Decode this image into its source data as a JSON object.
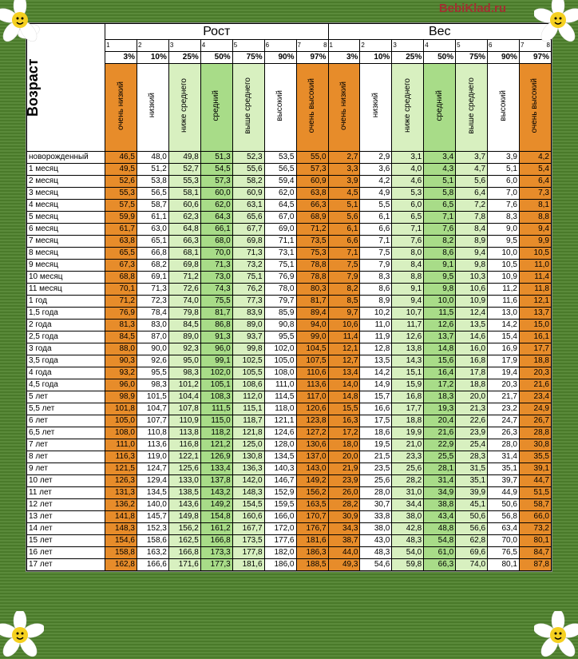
{
  "watermark": "BebiKlad.ru",
  "age_header": "Возраст",
  "sections": [
    "Рост",
    "Вес"
  ],
  "col_indices": [
    "1",
    "2",
    "3",
    "4",
    "5",
    "6",
    "7",
    "8"
  ],
  "percentiles": [
    "3%",
    "10%",
    "25%",
    "50%",
    "75%",
    "90%",
    "97%"
  ],
  "descriptors": [
    "очень низкий",
    "низкий",
    "ниже среднего",
    "средний",
    "выше среднего",
    "высокий",
    "очень высокий"
  ],
  "color_classes": [
    "c0",
    "c1",
    "c2",
    "c3",
    "c4",
    "c5",
    "c6"
  ],
  "rows": [
    {
      "age": "новорожденный",
      "h": [
        "46,5",
        "48,0",
        "49,8",
        "51,3",
        "52,3",
        "53,5",
        "55,0"
      ],
      "w": [
        "2,7",
        "2,9",
        "3,1",
        "3,4",
        "3,7",
        "3,9",
        "4,2"
      ]
    },
    {
      "age": "1 месяц",
      "h": [
        "49,5",
        "51,2",
        "52,7",
        "54,5",
        "55,6",
        "56,5",
        "57,3"
      ],
      "w": [
        "3,3",
        "3,6",
        "4,0",
        "4,3",
        "4,7",
        "5,1",
        "5,4"
      ]
    },
    {
      "age": "2 месяц",
      "h": [
        "52,6",
        "53,8",
        "55,3",
        "57,3",
        "58,2",
        "59,4",
        "60,9"
      ],
      "w": [
        "3,9",
        "4,2",
        "4,6",
        "5,1",
        "5,6",
        "6,0",
        "6,4"
      ]
    },
    {
      "age": "3 месяц",
      "h": [
        "55,3",
        "56,5",
        "58,1",
        "60,0",
        "60,9",
        "62,0",
        "63,8"
      ],
      "w": [
        "4,5",
        "4,9",
        "5,3",
        "5,8",
        "6,4",
        "7,0",
        "7,3"
      ]
    },
    {
      "age": "4 месяц",
      "h": [
        "57,5",
        "58,7",
        "60,6",
        "62,0",
        "63,1",
        "64,5",
        "66,3"
      ],
      "w": [
        "5,1",
        "5,5",
        "6,0",
        "6,5",
        "7,2",
        "7,6",
        "8,1"
      ]
    },
    {
      "age": "5 месяц",
      "h": [
        "59,9",
        "61,1",
        "62,3",
        "64,3",
        "65,6",
        "67,0",
        "68,9"
      ],
      "w": [
        "5,6",
        "6,1",
        "6,5",
        "7,1",
        "7,8",
        "8,3",
        "8,8"
      ]
    },
    {
      "age": "6 месяц",
      "h": [
        "61,7",
        "63,0",
        "64,8",
        "66,1",
        "67,7",
        "69,0",
        "71,2"
      ],
      "w": [
        "6,1",
        "6,6",
        "7,1",
        "7,6",
        "8,4",
        "9,0",
        "9,4"
      ]
    },
    {
      "age": "7 месяц",
      "h": [
        "63,8",
        "65,1",
        "66,3",
        "68,0",
        "69,8",
        "71,1",
        "73,5"
      ],
      "w": [
        "6,6",
        "7,1",
        "7,6",
        "8,2",
        "8,9",
        "9,5",
        "9,9"
      ]
    },
    {
      "age": "8 месяц",
      "h": [
        "65,5",
        "66,8",
        "68,1",
        "70,0",
        "71,3",
        "73,1",
        "75,3"
      ],
      "w": [
        "7,1",
        "7,5",
        "8,0",
        "8,6",
        "9,4",
        "10,0",
        "10,5"
      ]
    },
    {
      "age": "9 месяц",
      "h": [
        "67,3",
        "68,2",
        "69,8",
        "71,3",
        "73,2",
        "75,1",
        "78,8"
      ],
      "w": [
        "7,5",
        "7,9",
        "8,4",
        "9,1",
        "9,8",
        "10,5",
        "11,0"
      ]
    },
    {
      "age": "10 месяц",
      "h": [
        "68,8",
        "69,1",
        "71,2",
        "73,0",
        "75,1",
        "76,9",
        "78,8"
      ],
      "w": [
        "7,9",
        "8,3",
        "8,8",
        "9,5",
        "10,3",
        "10,9",
        "11,4"
      ]
    },
    {
      "age": "11 месяц",
      "h": [
        "70,1",
        "71,3",
        "72,6",
        "74,3",
        "76,2",
        "78,0",
        "80,3"
      ],
      "w": [
        "8,2",
        "8,6",
        "9,1",
        "9,8",
        "10,6",
        "11,2",
        "11,8"
      ]
    },
    {
      "age": "1 год",
      "h": [
        "71,2",
        "72,3",
        "74,0",
        "75,5",
        "77,3",
        "79,7",
        "81,7"
      ],
      "w": [
        "8,5",
        "8,9",
        "9,4",
        "10,0",
        "10,9",
        "11,6",
        "12,1"
      ]
    },
    {
      "age": "1,5 года",
      "h": [
        "76,9",
        "78,4",
        "79,8",
        "81,7",
        "83,9",
        "85,9",
        "89,4"
      ],
      "w": [
        "9,7",
        "10,2",
        "10,7",
        "11,5",
        "12,4",
        "13,0",
        "13,7"
      ]
    },
    {
      "age": "2 года",
      "h": [
        "81,3",
        "83,0",
        "84,5",
        "86,8",
        "89,0",
        "90,8",
        "94,0"
      ],
      "w": [
        "10,6",
        "11,0",
        "11,7",
        "12,6",
        "13,5",
        "14,2",
        "15,0"
      ]
    },
    {
      "age": "2,5 года",
      "h": [
        "84,5",
        "87,0",
        "89,0",
        "91,3",
        "93,7",
        "95,5",
        "99,0"
      ],
      "w": [
        "11,4",
        "11,9",
        "12,6",
        "13,7",
        "14,6",
        "15,4",
        "16,1"
      ]
    },
    {
      "age": "3 года",
      "h": [
        "88,0",
        "90,0",
        "92,3",
        "96,0",
        "99,8",
        "102,0",
        "104,5"
      ],
      "w": [
        "12,1",
        "12,8",
        "13,8",
        "14,8",
        "16,0",
        "16,9",
        "17,7"
      ]
    },
    {
      "age": "3,5 года",
      "h": [
        "90,3",
        "92,6",
        "95,0",
        "99,1",
        "102,5",
        "105,0",
        "107,5"
      ],
      "w": [
        "12,7",
        "13,5",
        "14,3",
        "15,6",
        "16,8",
        "17,9",
        "18,8"
      ]
    },
    {
      "age": "4 года",
      "h": [
        "93,2",
        "95,5",
        "98,3",
        "102,0",
        "105,5",
        "108,0",
        "110,6"
      ],
      "w": [
        "13,4",
        "14,2",
        "15,1",
        "16,4",
        "17,8",
        "19,4",
        "20,3"
      ]
    },
    {
      "age": "4,5 года",
      "h": [
        "96,0",
        "98,3",
        "101,2",
        "105,1",
        "108,6",
        "111,0",
        "113,6"
      ],
      "w": [
        "14,0",
        "14,9",
        "15,9",
        "17,2",
        "18,8",
        "20,3",
        "21,6"
      ]
    },
    {
      "age": "5 лет",
      "h": [
        "98,9",
        "101,5",
        "104,4",
        "108,3",
        "112,0",
        "114,5",
        "117,0"
      ],
      "w": [
        "14,8",
        "15,7",
        "16,8",
        "18,3",
        "20,0",
        "21,7",
        "23,4"
      ]
    },
    {
      "age": "5,5 лет",
      "h": [
        "101,8",
        "104,7",
        "107,8",
        "111,5",
        "115,1",
        "118,0",
        "120,6"
      ],
      "w": [
        "15,5",
        "16,6",
        "17,7",
        "19,3",
        "21,3",
        "23,2",
        "24,9"
      ]
    },
    {
      "age": "6 лет",
      "h": [
        "105,0",
        "107,7",
        "110,9",
        "115,0",
        "118,7",
        "121,1",
        "123,8"
      ],
      "w": [
        "16,3",
        "17,5",
        "18,8",
        "20,4",
        "22,6",
        "24,7",
        "26,7"
      ]
    },
    {
      "age": "6,5 лет",
      "h": [
        "108,0",
        "110,8",
        "113,8",
        "118,2",
        "121,8",
        "124,6",
        "127,2"
      ],
      "w": [
        "17,2",
        "18,6",
        "19,9",
        "21,6",
        "23,9",
        "26,3",
        "28,8"
      ]
    },
    {
      "age": "7 лет",
      "h": [
        "111,0",
        "113,6",
        "116,8",
        "121,2",
        "125,0",
        "128,0",
        "130,6"
      ],
      "w": [
        "18,0",
        "19,5",
        "21,0",
        "22,9",
        "25,4",
        "28,0",
        "30,8"
      ]
    },
    {
      "age": "8 лет",
      "h": [
        "116,3",
        "119,0",
        "122,1",
        "126,9",
        "130,8",
        "134,5",
        "137,0"
      ],
      "w": [
        "20,0",
        "21,5",
        "23,3",
        "25,5",
        "28,3",
        "31,4",
        "35,5"
      ]
    },
    {
      "age": "9 лет",
      "h": [
        "121,5",
        "124,7",
        "125,6",
        "133,4",
        "136,3",
        "140,3",
        "143,0"
      ],
      "w": [
        "21,9",
        "23,5",
        "25,6",
        "28,1",
        "31,5",
        "35,1",
        "39,1"
      ]
    },
    {
      "age": "10 лет",
      "h": [
        "126,3",
        "129,4",
        "133,0",
        "137,8",
        "142,0",
        "146,7",
        "149,2"
      ],
      "w": [
        "23,9",
        "25,6",
        "28,2",
        "31,4",
        "35,1",
        "39,7",
        "44,7"
      ]
    },
    {
      "age": "11 лет",
      "h": [
        "131,3",
        "134,5",
        "138,5",
        "143,2",
        "148,3",
        "152,9",
        "156,2"
      ],
      "w": [
        "26,0",
        "28,0",
        "31,0",
        "34,9",
        "39,9",
        "44,9",
        "51,5"
      ]
    },
    {
      "age": "12 лет",
      "h": [
        "136,2",
        "140,0",
        "143,6",
        "149,2",
        "154,5",
        "159,5",
        "163,5"
      ],
      "w": [
        "28,2",
        "30,7",
        "34,4",
        "38,8",
        "45,1",
        "50,6",
        "58,7"
      ]
    },
    {
      "age": "13 лет",
      "h": [
        "141,8",
        "145,7",
        "149,8",
        "154,8",
        "160,6",
        "166,0",
        "170,7"
      ],
      "w": [
        "30,9",
        "33,8",
        "38,0",
        "43,4",
        "50,6",
        "56,8",
        "66,0"
      ]
    },
    {
      "age": "14 лет",
      "h": [
        "148,3",
        "152,3",
        "156,2",
        "161,2",
        "167,7",
        "172,0",
        "176,7"
      ],
      "w": [
        "34,3",
        "38,0",
        "42,8",
        "48,8",
        "56,6",
        "63,4",
        "73,2"
      ]
    },
    {
      "age": "15 лет",
      "h": [
        "154,6",
        "158,6",
        "162,5",
        "166,8",
        "173,5",
        "177,6",
        "181,6"
      ],
      "w": [
        "38,7",
        "43,0",
        "48,3",
        "54,8",
        "62,8",
        "70,0",
        "80,1"
      ]
    },
    {
      "age": "16 лет",
      "h": [
        "158,8",
        "163,2",
        "166,8",
        "173,3",
        "177,8",
        "182,0",
        "186,3"
      ],
      "w": [
        "44,0",
        "48,3",
        "54,0",
        "61,0",
        "69,6",
        "76,5",
        "84,7"
      ]
    },
    {
      "age": "17 лет",
      "h": [
        "162,8",
        "166,6",
        "171,6",
        "177,3",
        "181,6",
        "186,0",
        "188,5"
      ],
      "w": [
        "49,3",
        "54,6",
        "59,8",
        "66,3",
        "74,0",
        "80,1",
        "87,8"
      ]
    }
  ]
}
